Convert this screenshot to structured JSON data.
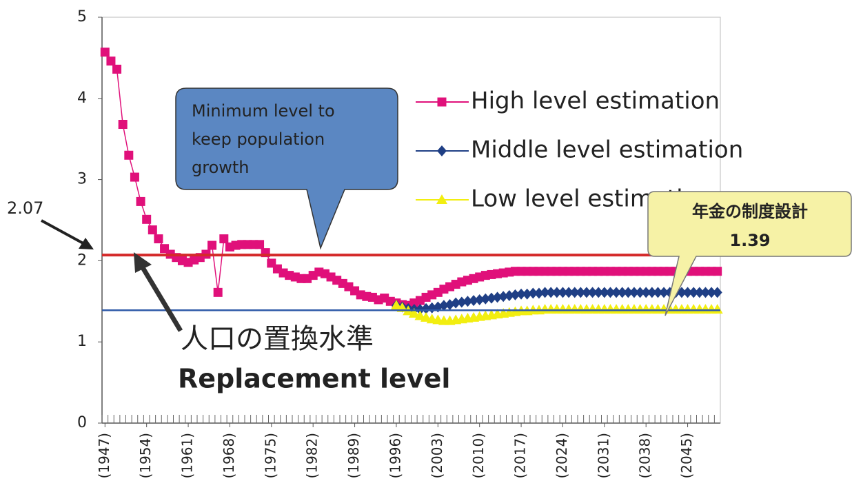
{
  "chart_data": {
    "type": "line",
    "x": [
      1947,
      1948,
      1949,
      1950,
      1951,
      1952,
      1953,
      1954,
      1955,
      1956,
      1957,
      1958,
      1959,
      1960,
      1961,
      1962,
      1963,
      1964,
      1965,
      1966,
      1967,
      1968,
      1969,
      1970,
      1971,
      1972,
      1973,
      1974,
      1975,
      1976,
      1977,
      1978,
      1979,
      1980,
      1981,
      1982,
      1983,
      1984,
      1985,
      1986,
      1987,
      1988,
      1989,
      1990,
      1991,
      1992,
      1993,
      1994,
      1995,
      1996,
      1997,
      1998,
      1999,
      2000,
      2001,
      2002,
      2003,
      2004,
      2005,
      2006,
      2007,
      2008,
      2009,
      2010,
      2011,
      2012,
      2013,
      2014,
      2015,
      2016,
      2017,
      2018,
      2019,
      2020,
      2021,
      2022,
      2023,
      2024,
      2025,
      2026,
      2027,
      2028,
      2029,
      2030,
      2031,
      2032,
      2033,
      2034,
      2035,
      2036,
      2037,
      2038,
      2039,
      2040,
      2041,
      2042,
      2043,
      2044,
      2045,
      2046,
      2047,
      2048,
      2049,
      2050
    ],
    "series": [
      {
        "name": "High level estimation",
        "color": "#e0107a",
        "marker": "square",
        "values": [
          4.57,
          4.46,
          4.36,
          3.68,
          3.3,
          3.03,
          2.73,
          2.51,
          2.38,
          2.27,
          2.15,
          2.08,
          2.04,
          2.0,
          1.98,
          2.01,
          2.04,
          2.08,
          2.19,
          1.61,
          2.27,
          2.17,
          2.19,
          2.2,
          2.2,
          2.2,
          2.2,
          2.1,
          1.97,
          1.9,
          1.85,
          1.82,
          1.8,
          1.78,
          1.78,
          1.82,
          1.86,
          1.84,
          1.8,
          1.76,
          1.72,
          1.68,
          1.63,
          1.58,
          1.56,
          1.55,
          1.52,
          1.54,
          1.5,
          1.48,
          1.46,
          1.45,
          1.48,
          1.51,
          1.55,
          1.58,
          1.61,
          1.65,
          1.68,
          1.71,
          1.74,
          1.76,
          1.78,
          1.8,
          1.82,
          1.83,
          1.84,
          1.85,
          1.86,
          1.87,
          1.87,
          1.87,
          1.87,
          1.87,
          1.87,
          1.87,
          1.87,
          1.87,
          1.87,
          1.87,
          1.87,
          1.87,
          1.87,
          1.87,
          1.87,
          1.87,
          1.87,
          1.87,
          1.87,
          1.87,
          1.87,
          1.87,
          1.87,
          1.87,
          1.87,
          1.87,
          1.87,
          1.87,
          1.87,
          1.87,
          1.87,
          1.87,
          1.87,
          1.87
        ]
      },
      {
        "name": "Middle level estimation",
        "color": "#1f3f85",
        "marker": "diamond",
        "values": [
          null,
          null,
          null,
          null,
          null,
          null,
          null,
          null,
          null,
          null,
          null,
          null,
          null,
          null,
          null,
          null,
          null,
          null,
          null,
          null,
          null,
          null,
          null,
          null,
          null,
          null,
          null,
          null,
          null,
          null,
          null,
          null,
          null,
          null,
          null,
          null,
          null,
          null,
          null,
          null,
          null,
          null,
          null,
          null,
          null,
          null,
          null,
          null,
          null,
          1.45,
          1.43,
          1.41,
          1.4,
          1.4,
          1.41,
          1.42,
          1.43,
          1.45,
          1.46,
          1.48,
          1.49,
          1.5,
          1.51,
          1.52,
          1.53,
          1.54,
          1.55,
          1.56,
          1.57,
          1.58,
          1.59,
          1.59,
          1.6,
          1.6,
          1.61,
          1.61,
          1.61,
          1.61,
          1.61,
          1.61,
          1.61,
          1.61,
          1.61,
          1.61,
          1.61,
          1.61,
          1.61,
          1.61,
          1.61,
          1.61,
          1.61,
          1.61,
          1.61,
          1.61,
          1.61,
          1.61,
          1.61,
          1.61,
          1.61,
          1.61,
          1.61,
          1.61,
          1.61,
          1.61
        ]
      },
      {
        "name": "Low level estimation",
        "color": "#f2ee10",
        "marker": "triangle",
        "values": [
          null,
          null,
          null,
          null,
          null,
          null,
          null,
          null,
          null,
          null,
          null,
          null,
          null,
          null,
          null,
          null,
          null,
          null,
          null,
          null,
          null,
          null,
          null,
          null,
          null,
          null,
          null,
          null,
          null,
          null,
          null,
          null,
          null,
          null,
          null,
          null,
          null,
          null,
          null,
          null,
          null,
          null,
          null,
          null,
          null,
          null,
          null,
          null,
          null,
          1.45,
          1.42,
          1.38,
          1.35,
          1.32,
          1.3,
          1.28,
          1.27,
          1.26,
          1.26,
          1.27,
          1.28,
          1.29,
          1.3,
          1.31,
          1.32,
          1.33,
          1.34,
          1.35,
          1.36,
          1.37,
          1.38,
          1.38,
          1.39,
          1.39,
          1.4,
          1.4,
          1.4,
          1.4,
          1.4,
          1.4,
          1.4,
          1.4,
          1.4,
          1.4,
          1.4,
          1.4,
          1.4,
          1.4,
          1.4,
          1.4,
          1.4,
          1.4,
          1.4,
          1.4,
          1.4,
          1.4,
          1.4,
          1.4,
          1.4,
          1.4,
          1.4,
          1.4,
          1.4,
          1.4
        ]
      }
    ],
    "xlim": [
      1946.5,
      2050.5
    ],
    "xticks": [
      {
        "value": 1947,
        "label": "(1947)"
      },
      {
        "value": 1954,
        "label": "(1954)"
      },
      {
        "value": 1961,
        "label": "(1961)"
      },
      {
        "value": 1968,
        "label": "(1968)"
      },
      {
        "value": 1975,
        "label": "(1975)"
      },
      {
        "value": 1982,
        "label": "(1982)"
      },
      {
        "value": 1989,
        "label": "(1989)"
      },
      {
        "value": 1996,
        "label": "(1996)"
      },
      {
        "value": 2003,
        "label": "(2003)"
      },
      {
        "value": 2010,
        "label": "(2010)"
      },
      {
        "value": 2017,
        "label": "(2017)"
      },
      {
        "value": 2024,
        "label": "(2024)"
      },
      {
        "value": 2031,
        "label": "(2031)"
      },
      {
        "value": 2038,
        "label": "(2038)"
      },
      {
        "value": 2045,
        "label": "(2045)"
      }
    ],
    "ylim": [
      0,
      5
    ],
    "yticks": [
      0,
      1,
      2,
      3,
      4,
      5
    ],
    "reference_lines": [
      {
        "value": 2.07,
        "color": "#d42a2a"
      },
      {
        "value": 1.39,
        "color": "#2f5aa8"
      }
    ],
    "callout": [
      "Minimum level to",
      "keep population",
      "growth"
    ],
    "replacement_label": [
      "人口の置換水準",
      "Replacement level"
    ],
    "pension_label": "年金の制度設計"
  }
}
